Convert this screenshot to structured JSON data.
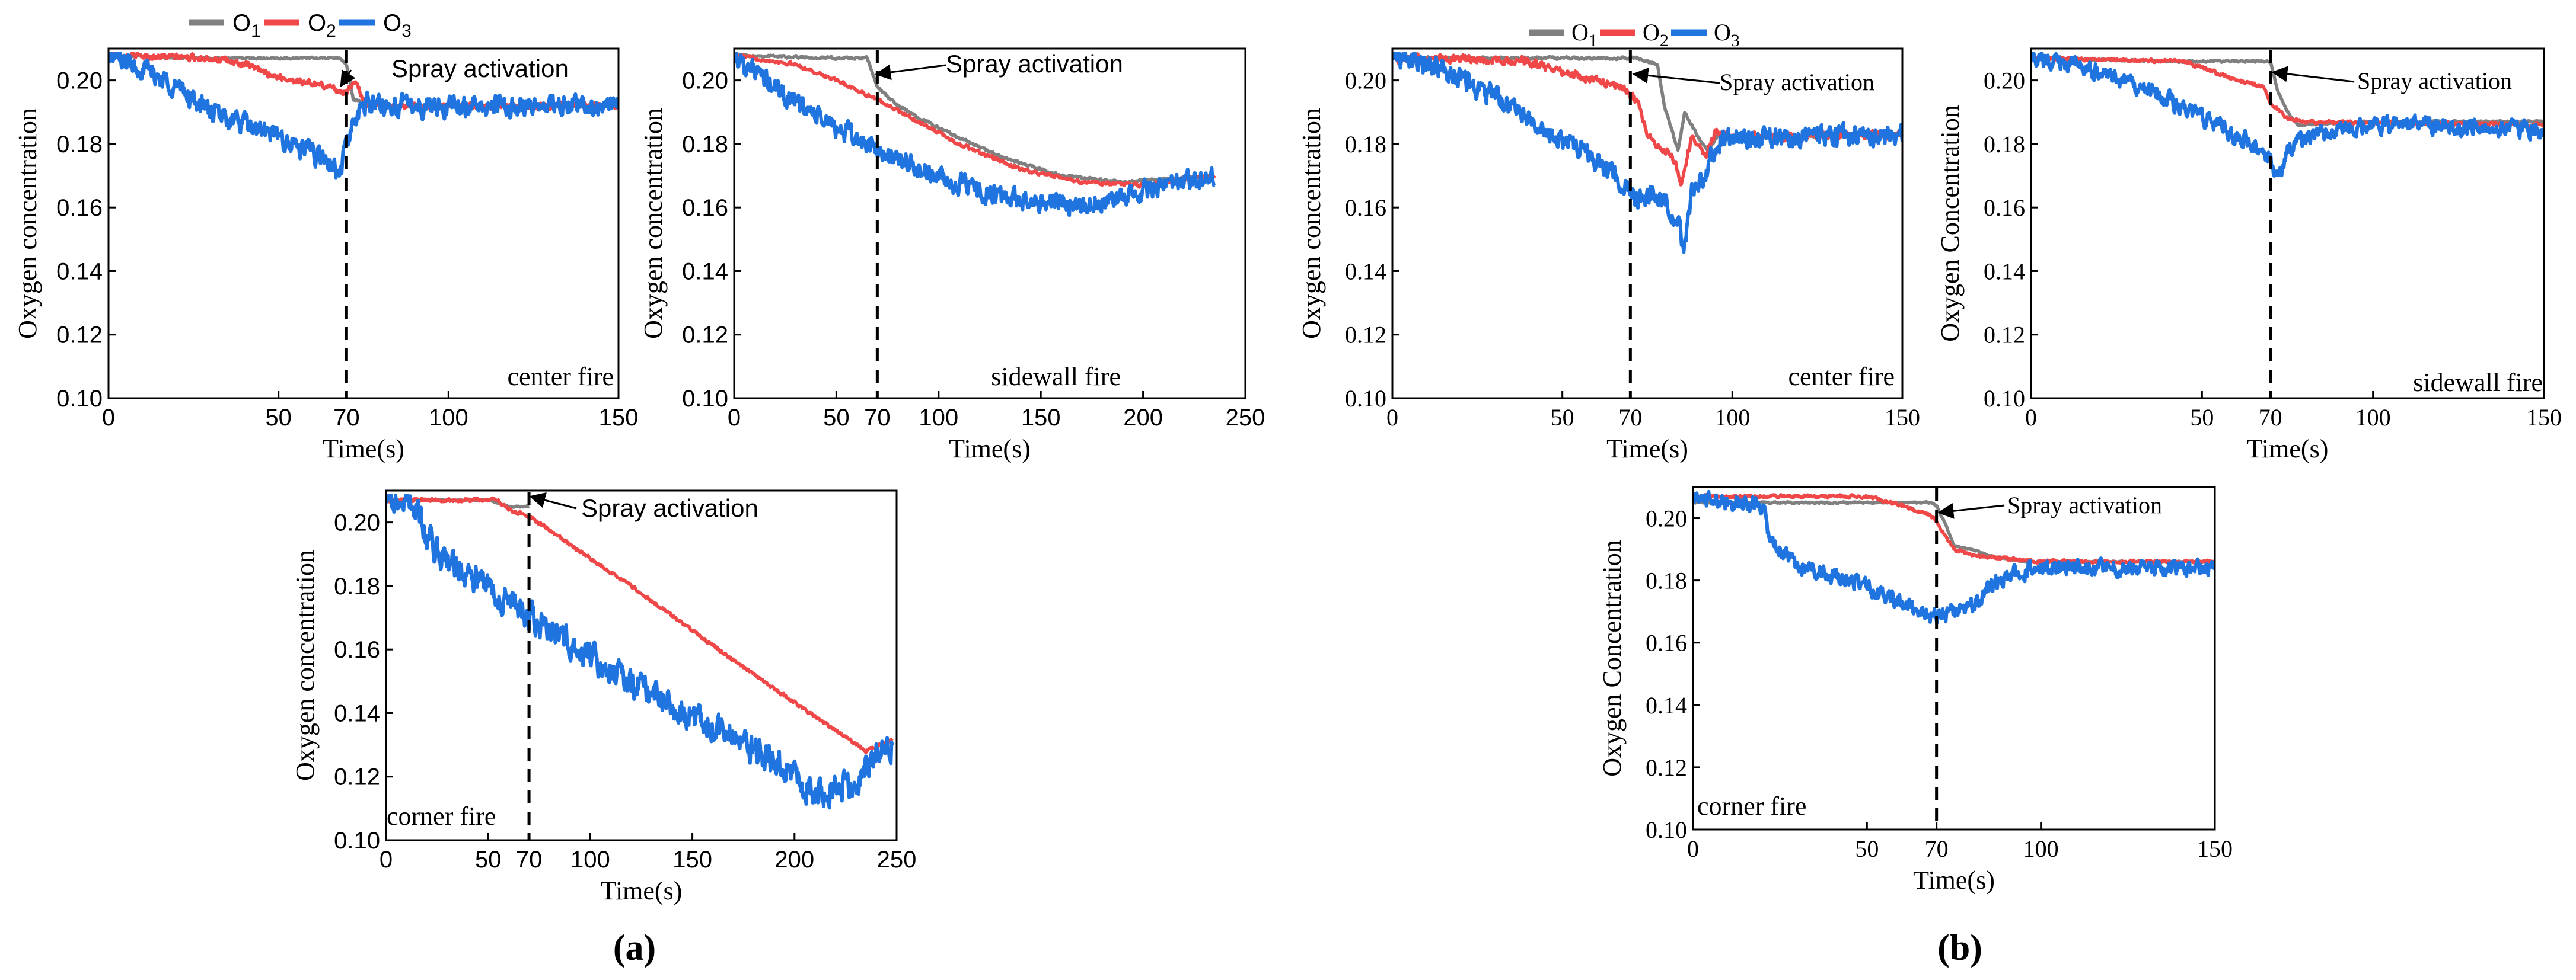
{
  "legend": {
    "left": {
      "names": [
        "O",
        "O",
        "O"
      ],
      "subs": [
        "1",
        "2",
        "3"
      ]
    },
    "right": {
      "names": [
        "O",
        "O",
        "O"
      ],
      "subs": [
        "1",
        "2",
        "3"
      ]
    }
  },
  "colors": {
    "O1": "#808080",
    "O2": "#f04848",
    "O3": "#1f74e0",
    "axis": "#000000"
  },
  "group_labels": [
    "(a)",
    "(b)"
  ],
  "chart_data": [
    {
      "id": "a-center",
      "group": "a",
      "type": "line",
      "annotation": "center fire",
      "arrow_label": "Spray activation",
      "activation_x": 70,
      "xlabel": "Time(s)",
      "ylabel": "Oxygen concentration",
      "xlim": [
        0,
        150
      ],
      "ylim": [
        0.1,
        0.21
      ],
      "xticks": [
        0,
        50,
        70,
        100,
        150
      ],
      "yticks": [
        0.1,
        0.12,
        0.14,
        0.16,
        0.18,
        0.2
      ],
      "x_tick_labels": [
        "0",
        "50",
        "70",
        "100",
        "150"
      ],
      "y_tick_labels": [
        "0.10",
        "0.12",
        "0.14",
        "0.16",
        "0.18",
        "0.20"
      ],
      "series": [
        {
          "name": "O1",
          "color": "#808080",
          "noise": 0.0004,
          "x": [
            0,
            20,
            60,
            68,
            70,
            72,
            75,
            80,
            150
          ],
          "y": [
            0.208,
            0.207,
            0.207,
            0.207,
            0.205,
            0.194,
            0.193,
            0.192,
            0.192
          ]
        },
        {
          "name": "O2",
          "color": "#f04848",
          "noise": 0.0015,
          "x": [
            0,
            30,
            40,
            50,
            60,
            65,
            70,
            73,
            75,
            78,
            80,
            150
          ],
          "y": [
            0.208,
            0.207,
            0.205,
            0.201,
            0.199,
            0.198,
            0.196,
            0.2,
            0.193,
            0.192,
            0.192,
            0.192
          ]
        },
        {
          "name": "O3",
          "color": "#1f74e0",
          "noise": 0.005,
          "x": [
            0,
            10,
            20,
            30,
            40,
            50,
            60,
            65,
            68,
            70,
            72,
            74,
            76,
            80,
            150
          ],
          "y": [
            0.208,
            0.204,
            0.198,
            0.19,
            0.186,
            0.182,
            0.177,
            0.174,
            0.17,
            0.18,
            0.186,
            0.19,
            0.193,
            0.192,
            0.192
          ]
        }
      ]
    },
    {
      "id": "a-sidewall",
      "group": "a",
      "type": "line",
      "annotation": "sidewall fire",
      "arrow_label": "Spray activation",
      "activation_x": 70,
      "xlabel": "Time(s)",
      "ylabel": "Oxygen concentration",
      "xlim": [
        0,
        250
      ],
      "ylim": [
        0.1,
        0.21
      ],
      "xticks": [
        0,
        50,
        70,
        100,
        150,
        200,
        250
      ],
      "yticks": [
        0.1,
        0.12,
        0.14,
        0.16,
        0.18,
        0.2
      ],
      "x_tick_labels": [
        "0",
        "50",
        "70",
        "100",
        "150",
        "200",
        "250"
      ],
      "y_tick_labels": [
        "0.10",
        "0.12",
        "0.14",
        "0.16",
        "0.18",
        "0.20"
      ],
      "series": [
        {
          "name": "O1",
          "color": "#808080",
          "noise": 0.0006,
          "x": [
            0,
            50,
            65,
            70,
            80,
            100,
            130,
            160,
            190,
            235
          ],
          "y": [
            0.208,
            0.207,
            0.207,
            0.198,
            0.192,
            0.185,
            0.176,
            0.17,
            0.168,
            0.17
          ]
        },
        {
          "name": "O2",
          "color": "#f04848",
          "noise": 0.0008,
          "x": [
            0,
            30,
            50,
            70,
            90,
            110,
            140,
            170,
            200,
            235
          ],
          "y": [
            0.208,
            0.205,
            0.2,
            0.194,
            0.187,
            0.18,
            0.172,
            0.168,
            0.167,
            0.17
          ]
        },
        {
          "name": "O3",
          "color": "#1f74e0",
          "noise": 0.005,
          "x": [
            0,
            15,
            30,
            50,
            70,
            90,
            110,
            130,
            150,
            180,
            200,
            235
          ],
          "y": [
            0.208,
            0.2,
            0.193,
            0.185,
            0.178,
            0.172,
            0.167,
            0.163,
            0.162,
            0.161,
            0.165,
            0.17
          ]
        }
      ]
    },
    {
      "id": "a-corner",
      "group": "a",
      "type": "line",
      "annotation": "corner fire",
      "arrow_label": "Spray activation",
      "activation_x": 70,
      "xlabel": "Time(s)",
      "ylabel": "Oxygen concentration",
      "xlim": [
        0,
        250
      ],
      "ylim": [
        0.1,
        0.21
      ],
      "xticks": [
        0,
        50,
        70,
        100,
        150,
        200,
        250
      ],
      "yticks": [
        0.1,
        0.12,
        0.14,
        0.16,
        0.18,
        0.2
      ],
      "x_tick_labels": [
        "0",
        "50",
        "70",
        "100",
        "150",
        "200",
        "250"
      ],
      "y_tick_labels": [
        "0.10",
        "0.12",
        "0.14",
        "0.16",
        "0.18",
        "0.20"
      ],
      "series": [
        {
          "name": "O1",
          "color": "#808080",
          "noise": 0.0003,
          "x": [
            0,
            50,
            60,
            70
          ],
          "y": [
            0.207,
            0.207,
            0.205,
            0.205
          ]
        },
        {
          "name": "O2",
          "color": "#f04848",
          "noise": 0.0008,
          "x": [
            0,
            55,
            60,
            70,
            90,
            120,
            150,
            180,
            210,
            235,
            248
          ],
          "y": [
            0.207,
            0.207,
            0.204,
            0.202,
            0.193,
            0.18,
            0.166,
            0.152,
            0.139,
            0.128,
            0.132
          ]
        },
        {
          "name": "O3",
          "color": "#1f74e0",
          "noise": 0.007,
          "x": [
            0,
            15,
            20,
            30,
            50,
            70,
            100,
            130,
            160,
            190,
            210,
            230,
            240,
            248
          ],
          "y": [
            0.207,
            0.206,
            0.195,
            0.188,
            0.18,
            0.17,
            0.158,
            0.146,
            0.136,
            0.125,
            0.115,
            0.118,
            0.128,
            0.13
          ]
        }
      ]
    },
    {
      "id": "b-center",
      "group": "b",
      "type": "line",
      "annotation": "center fire",
      "arrow_label": "Spray activation",
      "activation_x": 70,
      "xlabel": "Time(s)",
      "ylabel": "Oxygen concentration",
      "xlim": [
        0,
        150
      ],
      "ylim": [
        0.1,
        0.21
      ],
      "xticks": [
        0,
        50,
        70,
        100,
        150
      ],
      "yticks": [
        0.1,
        0.12,
        0.14,
        0.16,
        0.18,
        0.2
      ],
      "x_tick_labels": [
        "0",
        "50",
        "70",
        "100",
        "150"
      ],
      "y_tick_labels": [
        "0.10",
        "0.12",
        "0.14",
        "0.16",
        "0.18",
        "0.20"
      ],
      "series": [
        {
          "name": "O1",
          "color": "#808080",
          "noise": 0.0006,
          "x": [
            0,
            60,
            72,
            78,
            80,
            84,
            86,
            90,
            93,
            96,
            100,
            150
          ],
          "y": [
            0.207,
            0.207,
            0.207,
            0.205,
            0.192,
            0.178,
            0.19,
            0.182,
            0.178,
            0.183,
            0.182,
            0.183
          ]
        },
        {
          "name": "O2",
          "color": "#f04848",
          "noise": 0.002,
          "x": [
            0,
            40,
            50,
            60,
            68,
            72,
            75,
            80,
            83,
            85,
            88,
            92,
            95,
            100,
            150
          ],
          "y": [
            0.207,
            0.206,
            0.203,
            0.2,
            0.198,
            0.193,
            0.183,
            0.178,
            0.175,
            0.168,
            0.182,
            0.176,
            0.184,
            0.182,
            0.183
          ]
        },
        {
          "name": "O3",
          "color": "#1f74e0",
          "noise": 0.005,
          "x": [
            0,
            15,
            30,
            45,
            60,
            68,
            72,
            78,
            82,
            86,
            88,
            92,
            95,
            100,
            150
          ],
          "y": [
            0.208,
            0.203,
            0.195,
            0.185,
            0.175,
            0.168,
            0.162,
            0.165,
            0.16,
            0.148,
            0.165,
            0.17,
            0.18,
            0.182,
            0.183
          ]
        }
      ]
    },
    {
      "id": "b-sidewall",
      "group": "b",
      "type": "line",
      "annotation": "sidewall fire",
      "arrow_label": "Spray activation",
      "activation_x": 70,
      "xlabel": "Time(s)",
      "ylabel": "Oxygen Concentration",
      "xlim": [
        0,
        150
      ],
      "ylim": [
        0.1,
        0.21
      ],
      "xticks": [
        0,
        50,
        70,
        100,
        150
      ],
      "yticks": [
        0.1,
        0.12,
        0.14,
        0.16,
        0.18,
        0.2
      ],
      "x_tick_labels": [
        "0",
        "50",
        "70",
        "100",
        "150"
      ],
      "y_tick_labels": [
        "0.10",
        "0.12",
        "0.14",
        "0.16",
        "0.18",
        "0.20"
      ],
      "series": [
        {
          "name": "O1",
          "color": "#808080",
          "noise": 0.0005,
          "x": [
            0,
            40,
            70,
            72,
            75,
            78,
            80,
            100,
            150
          ],
          "y": [
            0.207,
            0.206,
            0.206,
            0.197,
            0.19,
            0.186,
            0.186,
            0.187,
            0.187
          ]
        },
        {
          "name": "O2",
          "color": "#f04848",
          "noise": 0.0008,
          "x": [
            0,
            45,
            50,
            60,
            68,
            70,
            75,
            80,
            150
          ],
          "y": [
            0.207,
            0.206,
            0.204,
            0.2,
            0.198,
            0.193,
            0.188,
            0.187,
            0.186
          ]
        },
        {
          "name": "O3",
          "color": "#1f74e0",
          "noise": 0.004,
          "x": [
            0,
            20,
            40,
            60,
            70,
            72,
            75,
            80,
            100,
            120,
            150
          ],
          "y": [
            0.207,
            0.203,
            0.194,
            0.183,
            0.176,
            0.168,
            0.178,
            0.182,
            0.186,
            0.186,
            0.184
          ]
        }
      ]
    },
    {
      "id": "b-corner",
      "group": "b",
      "type": "line",
      "annotation": "corner fire",
      "arrow_label": "Spray activation",
      "activation_x": 70,
      "xlabel": "Time(s)",
      "ylabel": "Oxygen Concentration",
      "xlim": [
        0,
        150
      ],
      "ylim": [
        0.1,
        0.21
      ],
      "xticks": [
        0,
        50,
        70,
        100,
        150
      ],
      "yticks": [
        0.1,
        0.12,
        0.14,
        0.16,
        0.18,
        0.2
      ],
      "x_tick_labels": [
        "0",
        "50",
        "70",
        "100",
        "150"
      ],
      "y_tick_labels": [
        "0.10",
        "0.12",
        "0.14",
        "0.16",
        "0.18",
        "0.20"
      ],
      "series": [
        {
          "name": "O1",
          "color": "#808080",
          "noise": 0.0004,
          "x": [
            0,
            60,
            68,
            70,
            73,
            75,
            80,
            85,
            95,
            150
          ],
          "y": [
            0.205,
            0.205,
            0.205,
            0.204,
            0.197,
            0.191,
            0.19,
            0.188,
            0.186,
            0.186
          ]
        },
        {
          "name": "O2",
          "color": "#f04848",
          "noise": 0.0008,
          "x": [
            0,
            50,
            60,
            68,
            70,
            72,
            75,
            80,
            100,
            150
          ],
          "y": [
            0.207,
            0.207,
            0.204,
            0.201,
            0.199,
            0.195,
            0.19,
            0.188,
            0.186,
            0.186
          ]
        },
        {
          "name": "O3",
          "color": "#1f74e0",
          "noise": 0.004,
          "x": [
            0,
            20,
            22,
            30,
            50,
            65,
            70,
            80,
            85,
            90,
            100,
            150
          ],
          "y": [
            0.207,
            0.204,
            0.193,
            0.185,
            0.178,
            0.17,
            0.168,
            0.172,
            0.177,
            0.182,
            0.184,
            0.184
          ]
        }
      ]
    }
  ]
}
